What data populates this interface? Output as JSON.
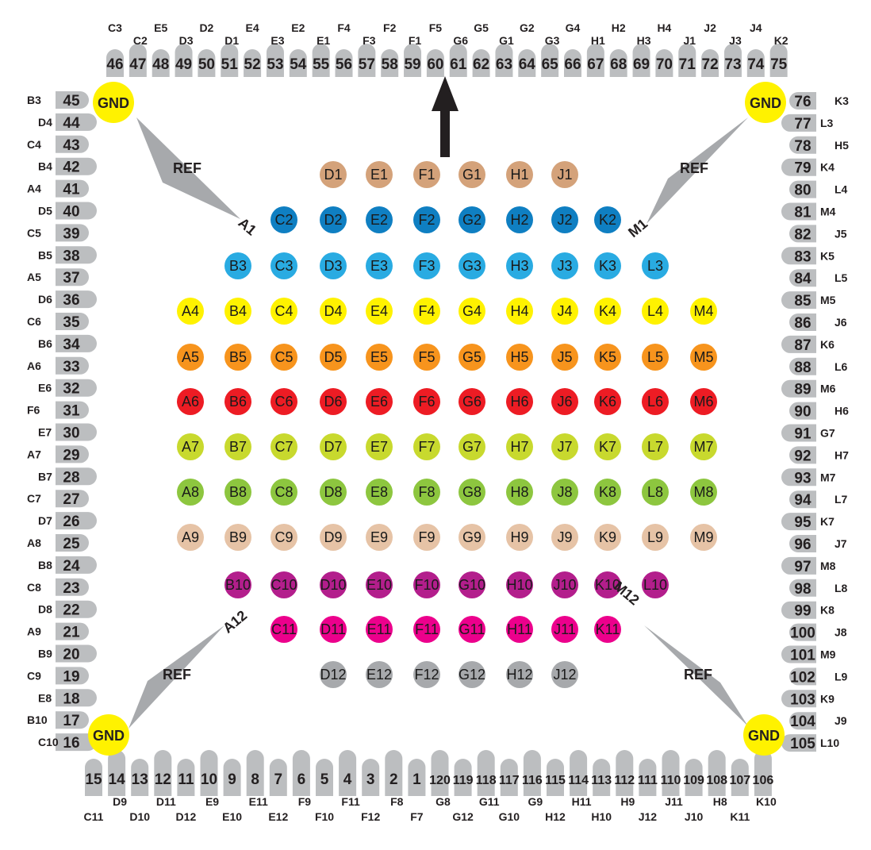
{
  "labels": {
    "gnd": "GND",
    "ref": "REF",
    "corners": {
      "a1": "A1",
      "m1": "M1",
      "a12": "A12",
      "m12": "M12"
    }
  },
  "colors": {
    "pin_fill": "#bcbec0",
    "gnd_fill": "#fff200",
    "ref_fill": "#a7a9ac",
    "text": "#231f20",
    "arrow": "#231f20"
  },
  "top_pins": [
    {
      "num": "46",
      "label": "C3"
    },
    {
      "num": "47",
      "label": "C2"
    },
    {
      "num": "48",
      "label": "E5"
    },
    {
      "num": "49",
      "label": "D3"
    },
    {
      "num": "50",
      "label": "D2"
    },
    {
      "num": "51",
      "label": "D1"
    },
    {
      "num": "52",
      "label": "E4"
    },
    {
      "num": "53",
      "label": "E3"
    },
    {
      "num": "54",
      "label": "E2"
    },
    {
      "num": "55",
      "label": "E1"
    },
    {
      "num": "56",
      "label": "F4"
    },
    {
      "num": "57",
      "label": "F3"
    },
    {
      "num": "58",
      "label": "F2"
    },
    {
      "num": "59",
      "label": "F1"
    },
    {
      "num": "60",
      "label": "F5"
    },
    {
      "num": "61",
      "label": "G6"
    },
    {
      "num": "62",
      "label": "G5"
    },
    {
      "num": "63",
      "label": "G1"
    },
    {
      "num": "64",
      "label": "G2"
    },
    {
      "num": "65",
      "label": "G3"
    },
    {
      "num": "66",
      "label": "G4"
    },
    {
      "num": "67",
      "label": "H1"
    },
    {
      "num": "68",
      "label": "H2"
    },
    {
      "num": "69",
      "label": "H3"
    },
    {
      "num": "70",
      "label": "H4"
    },
    {
      "num": "71",
      "label": "J1"
    },
    {
      "num": "72",
      "label": "J2"
    },
    {
      "num": "73",
      "label": "J3"
    },
    {
      "num": "74",
      "label": "J4"
    },
    {
      "num": "75",
      "label": "K2"
    }
  ],
  "left_pins": [
    {
      "num": "45",
      "label": "B3"
    },
    {
      "num": "44",
      "label": "D4"
    },
    {
      "num": "43",
      "label": "C4"
    },
    {
      "num": "42",
      "label": "B4"
    },
    {
      "num": "41",
      "label": "A4"
    },
    {
      "num": "40",
      "label": "D5"
    },
    {
      "num": "39",
      "label": "C5"
    },
    {
      "num": "38",
      "label": "B5"
    },
    {
      "num": "37",
      "label": "A5"
    },
    {
      "num": "36",
      "label": "D6"
    },
    {
      "num": "35",
      "label": "C6"
    },
    {
      "num": "34",
      "label": "B6"
    },
    {
      "num": "33",
      "label": "A6"
    },
    {
      "num": "32",
      "label": "E6"
    },
    {
      "num": "31",
      "label": "F6"
    },
    {
      "num": "30",
      "label": "E7"
    },
    {
      "num": "29",
      "label": "A7"
    },
    {
      "num": "28",
      "label": "B7"
    },
    {
      "num": "27",
      "label": "C7"
    },
    {
      "num": "26",
      "label": "D7"
    },
    {
      "num": "25",
      "label": "A8"
    },
    {
      "num": "24",
      "label": "B8"
    },
    {
      "num": "23",
      "label": "C8"
    },
    {
      "num": "22",
      "label": "D8"
    },
    {
      "num": "21",
      "label": "A9"
    },
    {
      "num": "20",
      "label": "B9"
    },
    {
      "num": "19",
      "label": "C9"
    },
    {
      "num": "18",
      "label": "E8"
    },
    {
      "num": "17",
      "label": "B10"
    },
    {
      "num": "16",
      "label": "C10"
    }
  ],
  "right_pins": [
    {
      "num": "76",
      "label": "K3"
    },
    {
      "num": "77",
      "label": "L3"
    },
    {
      "num": "78",
      "label": "H5"
    },
    {
      "num": "79",
      "label": "K4"
    },
    {
      "num": "80",
      "label": "L4"
    },
    {
      "num": "81",
      "label": "M4"
    },
    {
      "num": "82",
      "label": "J5"
    },
    {
      "num": "83",
      "label": "K5"
    },
    {
      "num": "84",
      "label": "L5"
    },
    {
      "num": "85",
      "label": "M5"
    },
    {
      "num": "86",
      "label": "J6"
    },
    {
      "num": "87",
      "label": "K6"
    },
    {
      "num": "88",
      "label": "L6"
    },
    {
      "num": "89",
      "label": "M6"
    },
    {
      "num": "90",
      "label": "H6"
    },
    {
      "num": "91",
      "label": "G7"
    },
    {
      "num": "92",
      "label": "H7"
    },
    {
      "num": "93",
      "label": "M7"
    },
    {
      "num": "94",
      "label": "L7"
    },
    {
      "num": "95",
      "label": "K7"
    },
    {
      "num": "96",
      "label": "J7"
    },
    {
      "num": "97",
      "label": "M8"
    },
    {
      "num": "98",
      "label": "L8"
    },
    {
      "num": "99",
      "label": "K8"
    },
    {
      "num": "100",
      "label": "J8"
    },
    {
      "num": "101",
      "label": "M9"
    },
    {
      "num": "102",
      "label": "L9"
    },
    {
      "num": "103",
      "label": "K9"
    },
    {
      "num": "104",
      "label": "J9"
    },
    {
      "num": "105",
      "label": "L10"
    }
  ],
  "bottom_pins": [
    {
      "num": "15",
      "label": "C11"
    },
    {
      "num": "14",
      "label": "D9"
    },
    {
      "num": "13",
      "label": "D10"
    },
    {
      "num": "12",
      "label": "D11"
    },
    {
      "num": "11",
      "label": "D12"
    },
    {
      "num": "10",
      "label": "E9"
    },
    {
      "num": "9",
      "label": "E10"
    },
    {
      "num": "8",
      "label": "E11"
    },
    {
      "num": "7",
      "label": "E12"
    },
    {
      "num": "6",
      "label": "F9"
    },
    {
      "num": "5",
      "label": "F10"
    },
    {
      "num": "4",
      "label": "F11"
    },
    {
      "num": "3",
      "label": "F12"
    },
    {
      "num": "2",
      "label": "F8"
    },
    {
      "num": "1",
      "label": "F7"
    },
    {
      "num": "120",
      "label": "G8"
    },
    {
      "num": "119",
      "label": "G12"
    },
    {
      "num": "118",
      "label": "G11"
    },
    {
      "num": "117",
      "label": "G10"
    },
    {
      "num": "116",
      "label": "G9"
    },
    {
      "num": "115",
      "label": "H12"
    },
    {
      "num": "114",
      "label": "H11"
    },
    {
      "num": "113",
      "label": "H10"
    },
    {
      "num": "112",
      "label": "H9"
    },
    {
      "num": "111",
      "label": "J12"
    },
    {
      "num": "110",
      "label": "J11"
    },
    {
      "num": "109",
      "label": "J10"
    },
    {
      "num": "108",
      "label": "H8"
    },
    {
      "num": "107",
      "label": "K11"
    },
    {
      "num": "106",
      "label": "K10"
    }
  ],
  "grid_rows": [
    {
      "row": "1",
      "color": "#d4a27a",
      "dots": [
        "D1",
        "E1",
        "F1",
        "G1",
        "H1",
        "J1"
      ]
    },
    {
      "row": "2",
      "color": "#0f7fc2",
      "dots": [
        "C2",
        "D2",
        "E2",
        "F2",
        "G2",
        "H2",
        "J2",
        "K2"
      ]
    },
    {
      "row": "3",
      "color": "#29abe2",
      "dots": [
        "B3",
        "C3",
        "D3",
        "E3",
        "F3",
        "G3",
        "H3",
        "J3",
        "K3",
        "L3"
      ]
    },
    {
      "row": "4",
      "color": "#fff200",
      "dots": [
        "A4",
        "B4",
        "C4",
        "D4",
        "E4",
        "F4",
        "G4",
        "H4",
        "J4",
        "K4",
        "L4",
        "M4"
      ]
    },
    {
      "row": "5",
      "color": "#f7941d",
      "dots": [
        "A5",
        "B5",
        "C5",
        "D5",
        "E5",
        "F5",
        "G5",
        "H5",
        "J5",
        "K5",
        "L5",
        "M5"
      ]
    },
    {
      "row": "6",
      "color": "#ed1c24",
      "dots": [
        "A6",
        "B6",
        "C6",
        "D6",
        "E6",
        "F6",
        "G6",
        "H6",
        "J6",
        "K6",
        "L6",
        "M6"
      ]
    },
    {
      "row": "7",
      "color": "#c8d92e",
      "dots": [
        "A7",
        "B7",
        "C7",
        "D7",
        "E7",
        "F7",
        "G7",
        "H7",
        "J7",
        "K7",
        "L7",
        "M7"
      ]
    },
    {
      "row": "8",
      "color": "#8dc63f",
      "dots": [
        "A8",
        "B8",
        "C8",
        "D8",
        "E8",
        "F8",
        "G8",
        "H8",
        "J8",
        "K8",
        "L8",
        "M8"
      ]
    },
    {
      "row": "9",
      "color": "#e6c3a6",
      "dots": [
        "A9",
        "B9",
        "C9",
        "D9",
        "E9",
        "F9",
        "G9",
        "H9",
        "J9",
        "K9",
        "L9",
        "M9"
      ]
    },
    {
      "row": "10",
      "color": "#b31e8c",
      "dots": [
        "B10",
        "C10",
        "D10",
        "E10",
        "F10",
        "G10",
        "H10",
        "J10",
        "K10",
        "L10"
      ]
    },
    {
      "row": "11",
      "color": "#ec008c",
      "dots": [
        "C11",
        "D11",
        "E11",
        "F11",
        "G11",
        "H11",
        "J11",
        "K11"
      ]
    },
    {
      "row": "12",
      "color": "#a7a9ac",
      "dots": [
        "D12",
        "E12",
        "F12",
        "G12",
        "H12",
        "J12"
      ]
    }
  ]
}
